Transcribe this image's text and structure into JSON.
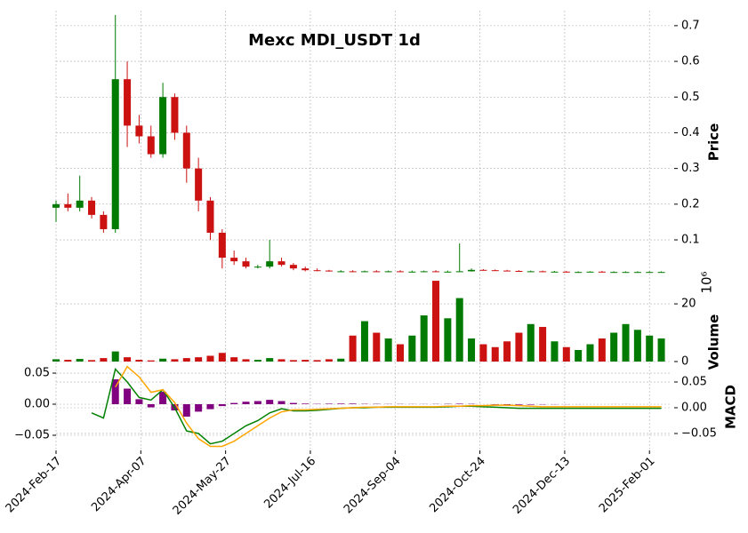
{
  "chart_data": {
    "type": "candlestick",
    "title": "Mexc MDI_USDT 1d",
    "x": [
      "2024-02-17",
      "2024-02-24",
      "2024-03-02",
      "2024-03-09",
      "2024-03-16",
      "2024-03-23",
      "2024-03-30",
      "2024-04-06",
      "2024-04-13",
      "2024-04-20",
      "2024-04-27",
      "2024-05-04",
      "2024-05-11",
      "2024-05-18",
      "2024-05-25",
      "2024-06-01",
      "2024-06-08",
      "2024-06-15",
      "2024-06-22",
      "2024-06-29",
      "2024-07-06",
      "2024-07-13",
      "2024-07-20",
      "2024-07-27",
      "2024-08-03",
      "2024-08-10",
      "2024-08-17",
      "2024-08-24",
      "2024-08-31",
      "2024-09-07",
      "2024-09-14",
      "2024-09-21",
      "2024-09-28",
      "2024-10-05",
      "2024-10-12",
      "2024-10-19",
      "2024-10-26",
      "2024-11-02",
      "2024-11-09",
      "2024-11-16",
      "2024-11-23",
      "2024-11-30",
      "2024-12-07",
      "2024-12-14",
      "2024-12-21",
      "2024-12-28",
      "2025-01-04",
      "2025-01-11",
      "2025-01-18",
      "2025-01-25",
      "2025-02-01",
      "2025-02-08"
    ],
    "xlim": [
      "2024-02-17",
      "2025-02-14"
    ],
    "xticks": [
      {
        "value": "2024-02-17",
        "label": "2024-Feb-17"
      },
      {
        "value": "2024-04-07",
        "label": "2024-Apr-07"
      },
      {
        "value": "2024-05-27",
        "label": "2024-May-27"
      },
      {
        "value": "2024-07-16",
        "label": "2024-Jul-16"
      },
      {
        "value": "2024-09-04",
        "label": "2024-Sep-04"
      },
      {
        "value": "2024-10-24",
        "label": "2024-Oct-24"
      },
      {
        "value": "2024-12-13",
        "label": "2024-Dec-13"
      },
      {
        "value": "2025-02-01",
        "label": "2025-Feb-01"
      }
    ],
    "grid": true,
    "up_color": "#007a00",
    "down_color": "#cc1111",
    "price": {
      "ylabel": "Price",
      "open": [
        0.19,
        0.2,
        0.19,
        0.21,
        0.17,
        0.13,
        0.55,
        0.42,
        0.39,
        0.34,
        0.5,
        0.4,
        0.3,
        0.21,
        0.12,
        0.05,
        0.04,
        0.025,
        0.025,
        0.04,
        0.03,
        0.02,
        0.015,
        0.014,
        0.012,
        0.012,
        0.011,
        0.012,
        0.011,
        0.012,
        0.011,
        0.011,
        0.012,
        0.011,
        0.011,
        0.012,
        0.016,
        0.015,
        0.014,
        0.013,
        0.012,
        0.012,
        0.011,
        0.011,
        0.01,
        0.01,
        0.011,
        0.01,
        0.01,
        0.01,
        0.01,
        0.01
      ],
      "high": [
        0.21,
        0.23,
        0.28,
        0.22,
        0.18,
        0.73,
        0.6,
        0.45,
        0.42,
        0.54,
        0.51,
        0.42,
        0.33,
        0.22,
        0.13,
        0.07,
        0.05,
        0.03,
        0.1,
        0.05,
        0.035,
        0.025,
        0.02,
        0.016,
        0.015,
        0.015,
        0.014,
        0.015,
        0.014,
        0.015,
        0.014,
        0.014,
        0.015,
        0.014,
        0.09,
        0.02,
        0.018,
        0.017,
        0.016,
        0.015,
        0.014,
        0.014,
        0.013,
        0.013,
        0.012,
        0.012,
        0.013,
        0.012,
        0.012,
        0.012,
        0.012,
        0.012
      ],
      "low": [
        0.15,
        0.18,
        0.18,
        0.16,
        0.12,
        0.12,
        0.36,
        0.37,
        0.33,
        0.33,
        0.38,
        0.26,
        0.18,
        0.1,
        0.02,
        0.03,
        0.02,
        0.02,
        0.02,
        0.025,
        0.015,
        0.012,
        0.012,
        0.011,
        0.01,
        0.01,
        0.01,
        0.01,
        0.01,
        0.01,
        0.01,
        0.01,
        0.01,
        0.01,
        0.01,
        0.011,
        0.014,
        0.013,
        0.012,
        0.011,
        0.011,
        0.01,
        0.01,
        0.009,
        0.009,
        0.009,
        0.009,
        0.009,
        0.009,
        0.009,
        0.009,
        0.009
      ],
      "close": [
        0.2,
        0.19,
        0.21,
        0.17,
        0.13,
        0.55,
        0.42,
        0.39,
        0.34,
        0.5,
        0.4,
        0.3,
        0.21,
        0.12,
        0.05,
        0.04,
        0.025,
        0.025,
        0.04,
        0.03,
        0.02,
        0.015,
        0.014,
        0.012,
        0.012,
        0.011,
        0.012,
        0.011,
        0.012,
        0.011,
        0.011,
        0.012,
        0.011,
        0.011,
        0.012,
        0.016,
        0.015,
        0.014,
        0.013,
        0.012,
        0.012,
        0.011,
        0.011,
        0.01,
        0.01,
        0.011,
        0.01,
        0.01,
        0.01,
        0.01,
        0.01,
        0.01
      ],
      "ylim": [
        0.008,
        0.742
      ],
      "yticks": [
        0.1,
        0.2,
        0.3,
        0.4,
        0.5,
        0.6,
        0.7
      ]
    },
    "volume": {
      "ylabel": "Volume",
      "offset_label": "10⁶",
      "values": [
        0.8,
        0.6,
        0.9,
        0.5,
        1.2,
        3.5,
        1.5,
        0.6,
        0.4,
        1.0,
        0.8,
        1.2,
        1.5,
        2.0,
        3.0,
        1.5,
        0.8,
        0.6,
        1.2,
        0.8,
        0.5,
        0.6,
        0.5,
        0.8,
        1.0,
        9,
        14,
        10,
        8,
        6,
        9,
        16,
        28,
        15,
        22,
        8,
        6,
        5,
        7,
        10,
        13,
        12,
        7,
        5,
        4,
        6,
        8,
        10,
        13,
        11,
        9,
        8
      ],
      "ylim": [
        0,
        30.8
      ],
      "yticks": [
        0,
        20
      ]
    },
    "macd": {
      "ylabel": "MACD",
      "histogram": [
        null,
        null,
        null,
        null,
        null,
        0.04,
        0.025,
        0.008,
        -0.005,
        0.02,
        -0.01,
        -0.02,
        -0.012,
        -0.008,
        -0.003,
        0.002,
        0.004,
        0.005,
        0.007,
        0.005,
        0.002,
        0.001,
        0.0005,
        0.0008,
        0.001,
        0.001,
        0.0005,
        0.0005,
        0.0003,
        0.0003,
        0.0002,
        0.0002,
        0.0003,
        0.0005,
        0.0008,
        0.0005,
        0,
        -0.0005,
        -0.001,
        -0.001,
        -0.0008,
        -0.0005,
        -0.0003,
        -0.0002,
        -0.0001,
        0,
        0,
        0.0001,
        0.0001,
        0,
        0,
        0
      ],
      "histogram_color": "#800080",
      "macd": [
        null,
        null,
        null,
        -0.01,
        -0.02,
        0.075,
        0.05,
        0.02,
        0.015,
        0.035,
        0.0,
        -0.045,
        -0.05,
        -0.07,
        -0.065,
        -0.05,
        -0.035,
        -0.025,
        -0.01,
        -0.002,
        -0.006,
        -0.006,
        -0.005,
        -0.003,
        -0.001,
        0,
        0,
        0.001,
        0.001,
        0.001,
        0.001,
        0.001,
        0.001,
        0.002,
        0.003,
        0.003,
        0.002,
        0.001,
        0,
        -0.001,
        -0.001,
        -0.001,
        -0.001,
        -0.001,
        -0.001,
        -0.001,
        -0.001,
        -0.001,
        -0.001,
        -0.001,
        -0.001,
        -0.001
      ],
      "macd_color": "#008000",
      "signal": [
        null,
        null,
        null,
        null,
        null,
        0.04,
        0.08,
        0.06,
        0.03,
        0.035,
        0.01,
        -0.03,
        -0.06,
        -0.075,
        -0.075,
        -0.065,
        -0.05,
        -0.035,
        -0.02,
        -0.008,
        -0.004,
        -0.004,
        -0.003,
        -0.002,
        -0.001,
        0,
        0.001,
        0.001,
        0.002,
        0.002,
        0.002,
        0.002,
        0.002,
        0.003,
        0.003,
        0.004,
        0.004,
        0.005,
        0.005,
        0.004,
        0.003,
        0.002,
        0.002,
        0.002,
        0.002,
        0.002,
        0.002,
        0.002,
        0.002,
        0.002,
        0.002,
        0.002
      ],
      "signal_color": "#ffa500",
      "ylim": [
        -0.0743,
        0.0686
      ],
      "yticks": [
        {
          "value": -0.05,
          "label": "−0.05"
        },
        {
          "value": 0,
          "label": "0.00"
        },
        {
          "value": 0.05,
          "label": "0.05"
        }
      ],
      "y2lim": [
        -0.0828,
        0.0897
      ],
      "y2ticks": [
        {
          "value": -0.05,
          "label": "−0.05"
        },
        {
          "value": 0,
          "label": "0.00"
        },
        {
          "value": 0.05,
          "label": "0.05"
        }
      ]
    }
  }
}
